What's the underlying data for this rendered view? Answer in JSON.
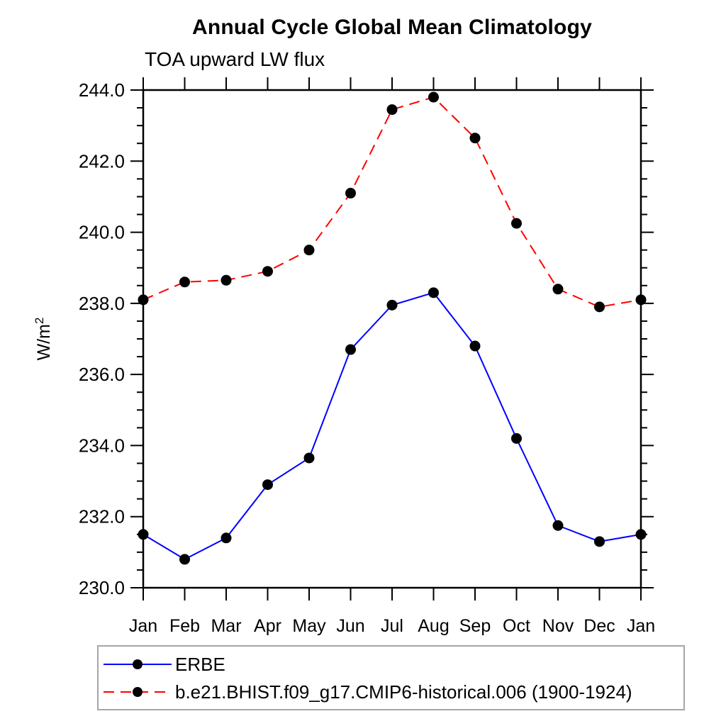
{
  "figure": {
    "title": "Annual Cycle Global Mean Climatology",
    "subtitle": "TOA upward LW flux"
  },
  "chart_data": {
    "type": "line",
    "title": "Annual Cycle Global Mean Climatology",
    "subtitle": "TOA upward LW flux",
    "ylabel": "W/m",
    "ylabel_superscript": "2",
    "x_categories": [
      "Jan",
      "Feb",
      "Mar",
      "Apr",
      "May",
      "Jun",
      "Jul",
      "Aug",
      "Sep",
      "Oct",
      "Nov",
      "Dec",
      "Jan"
    ],
    "ylim": [
      230.0,
      244.0
    ],
    "y_major_step": 2.0,
    "y_minor_step": 0.5,
    "y_tick_labels": [
      "230.0",
      "232.0",
      "234.0",
      "236.0",
      "238.0",
      "240.0",
      "242.0",
      "244.0"
    ],
    "grid": false,
    "legend_position": "bottom-left",
    "axis_color": "#000000",
    "marker_color": "#000000",
    "series": [
      {
        "name": "ERBE",
        "color": "#0000ff",
        "style": "solid",
        "marker": "filled-circle",
        "values": [
          231.5,
          230.8,
          231.4,
          232.9,
          233.65,
          236.7,
          237.95,
          238.3,
          236.8,
          234.2,
          231.75,
          231.3,
          231.5
        ]
      },
      {
        "name": "b.e21.BHIST.f09_g17.CMIP6-historical.006 (1900-1924)",
        "color": "#ff0000",
        "style": "dashed",
        "marker": "filled-circle",
        "values": [
          238.1,
          238.6,
          238.65,
          238.9,
          239.5,
          241.1,
          243.45,
          243.8,
          242.65,
          240.25,
          238.4,
          237.9,
          238.1
        ]
      }
    ]
  }
}
